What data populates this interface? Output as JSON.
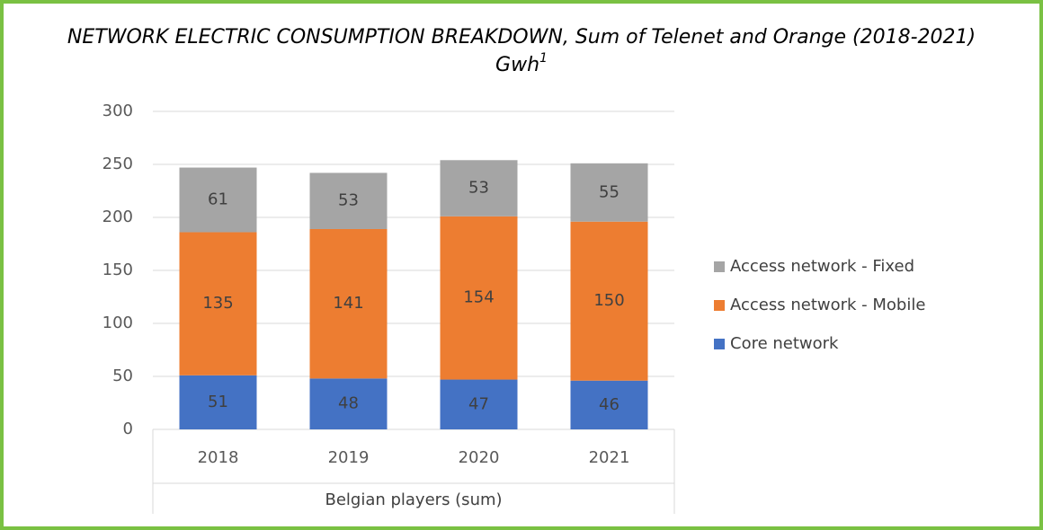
{
  "chart_data": {
    "type": "stacked_bar",
    "title": "NETWORK ELECTRIC CONSUMPTION BREAKDOWN, Sum of Telenet and Orange (2018-2021)",
    "subtitle": "Gwh",
    "subtitle_footnote": "1",
    "categories": [
      "2018",
      "2019",
      "2020",
      "2021"
    ],
    "xlabel": "Belgian players (sum)",
    "series": [
      {
        "name": "Core network",
        "color": "#4472c4",
        "values": [
          51,
          48,
          47,
          46
        ]
      },
      {
        "name": "Access network - Mobile",
        "color": "#ed7d31",
        "values": [
          135,
          141,
          154,
          150
        ]
      },
      {
        "name": "Access network - Fixed",
        "color": "#a5a5a5",
        "values": [
          61,
          53,
          53,
          55
        ]
      }
    ],
    "ylim": [
      0,
      300
    ],
    "yticks": [
      0,
      50,
      100,
      150,
      200,
      250,
      300
    ],
    "grid": true,
    "legend": "right"
  }
}
